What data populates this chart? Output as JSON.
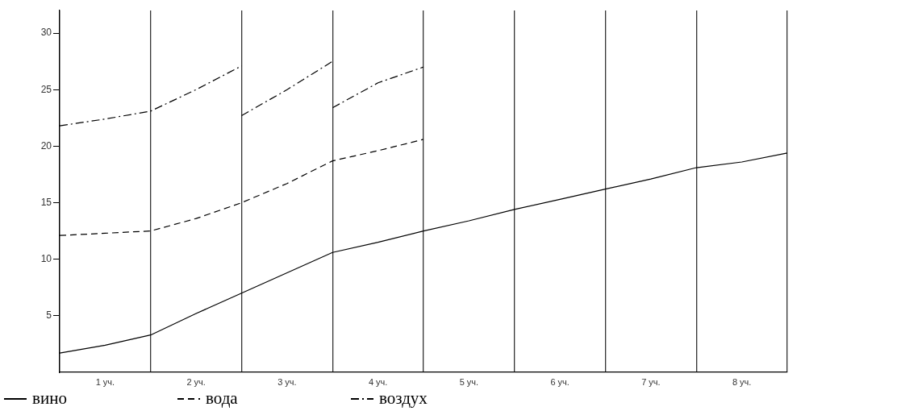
{
  "chart_data": {
    "type": "line",
    "categories": [
      null,
      "1 уч.",
      null,
      "2 уч.",
      null,
      "3 уч.",
      null,
      "4 уч.",
      null,
      "5 уч.",
      null,
      "6 уч.",
      null,
      "7 уч.",
      null,
      "8 уч.",
      null
    ],
    "ylim": [
      0,
      32
    ],
    "yticks": [
      5,
      10,
      15,
      20,
      25,
      30
    ],
    "grid": "x",
    "legend": "bottom",
    "series": [
      {
        "name": "вино",
        "color": "#000000",
        "line_style": "solid",
        "values": [
          1.7,
          2.4,
          3.3,
          5.2,
          7.0,
          8.8,
          10.6,
          11.5,
          12.5,
          13.4,
          14.4,
          15.3,
          16.2,
          17.1,
          18.1,
          18.6,
          19.4
        ]
      },
      {
        "name": "вода",
        "color": "#000000",
        "line_style": "dashed",
        "values": [
          12.1,
          12.3,
          12.5,
          13.6,
          15.0,
          16.7,
          18.7,
          19.6,
          20.6,
          null,
          null,
          null,
          null,
          null,
          null,
          null,
          null
        ]
      },
      {
        "name": "воздух",
        "color": "#000000",
        "line_style": "dashdot",
        "values": [
          21.8,
          22.4,
          23.1,
          25.0,
          27.1,
          null,
          23.4,
          25.6,
          27.0,
          null,
          null,
          null,
          null,
          null,
          null,
          null,
          null
        ]
      },
      {
        "color": "#000000",
        "line_style": "dashdot",
        "values": [
          null,
          null,
          null,
          null,
          22.7,
          25.0,
          27.5,
          null,
          null,
          null,
          null,
          null,
          null,
          null,
          null,
          null,
          null
        ]
      }
    ]
  }
}
